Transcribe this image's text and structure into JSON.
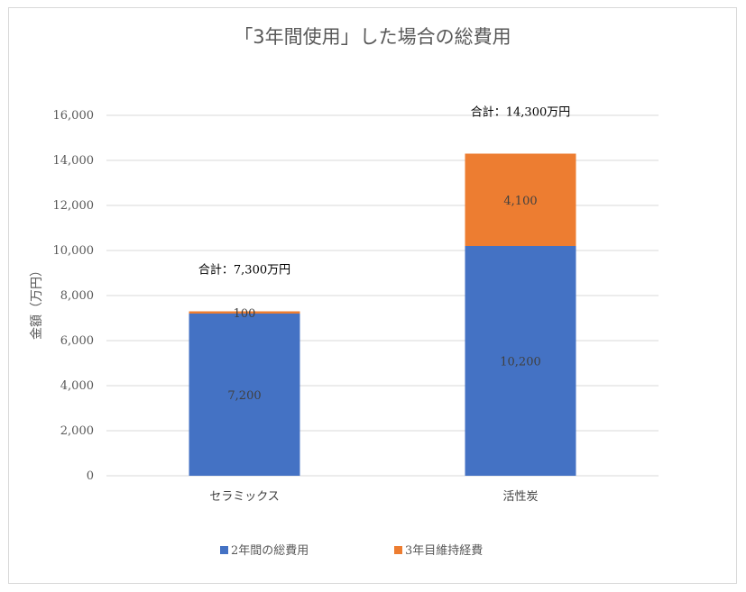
{
  "chart_data": {
    "type": "bar",
    "stacked": true,
    "title": "「3年間使用」した場合の総費用",
    "ylabel": "金額（万円）",
    "xlabel": "",
    "ylim": [
      0,
      16000
    ],
    "yticks": [
      "0",
      "2,000",
      "4,000",
      "6,000",
      "8,000",
      "10,000",
      "12,000",
      "14,000",
      "16,000"
    ],
    "ytick_values": [
      0,
      2000,
      4000,
      6000,
      8000,
      10000,
      12000,
      14000,
      16000
    ],
    "categories": [
      "セラミックス",
      "活性炭"
    ],
    "series": [
      {
        "name": "2年間の総費用",
        "color": "#4472c4",
        "values": [
          7200,
          10200
        ],
        "labels": [
          "7,200",
          "10,200"
        ]
      },
      {
        "name": "3年目維持経費",
        "color": "#ed7d31",
        "values": [
          100,
          4100
        ],
        "labels": [
          "100",
          "4,100"
        ]
      }
    ],
    "totals": [
      "合計：7,300万円",
      "合計：14,300万円"
    ],
    "grid": true,
    "legend_position": "bottom"
  }
}
